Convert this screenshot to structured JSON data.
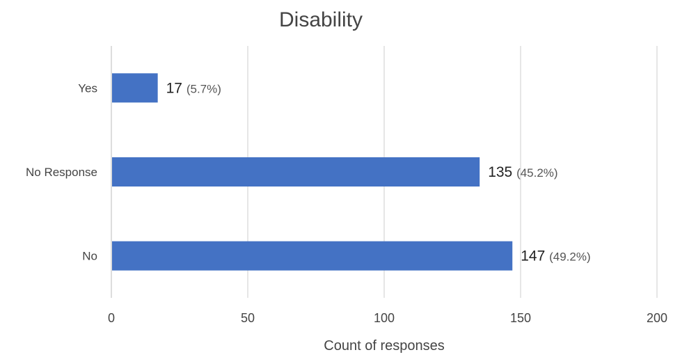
{
  "chart_data": {
    "type": "bar",
    "orientation": "horizontal",
    "title": "Disability",
    "xlabel": "Count of responses",
    "ylabel": "",
    "categories": [
      "Yes",
      "No Response",
      "No"
    ],
    "values": [
      17,
      135,
      147
    ],
    "data_labels": {
      "counts": [
        "17",
        "135",
        "147"
      ],
      "percents": [
        "(5.7%)",
        "(45.2%)",
        "(49.2%)"
      ]
    },
    "xlim": [
      0,
      200
    ],
    "xticks": [
      0,
      50,
      100,
      150,
      200
    ],
    "xtick_labels": [
      "0",
      "50",
      "100",
      "150",
      "200"
    ],
    "grid": true,
    "legend": "none",
    "colors": {
      "bar": "#4472c4"
    }
  }
}
